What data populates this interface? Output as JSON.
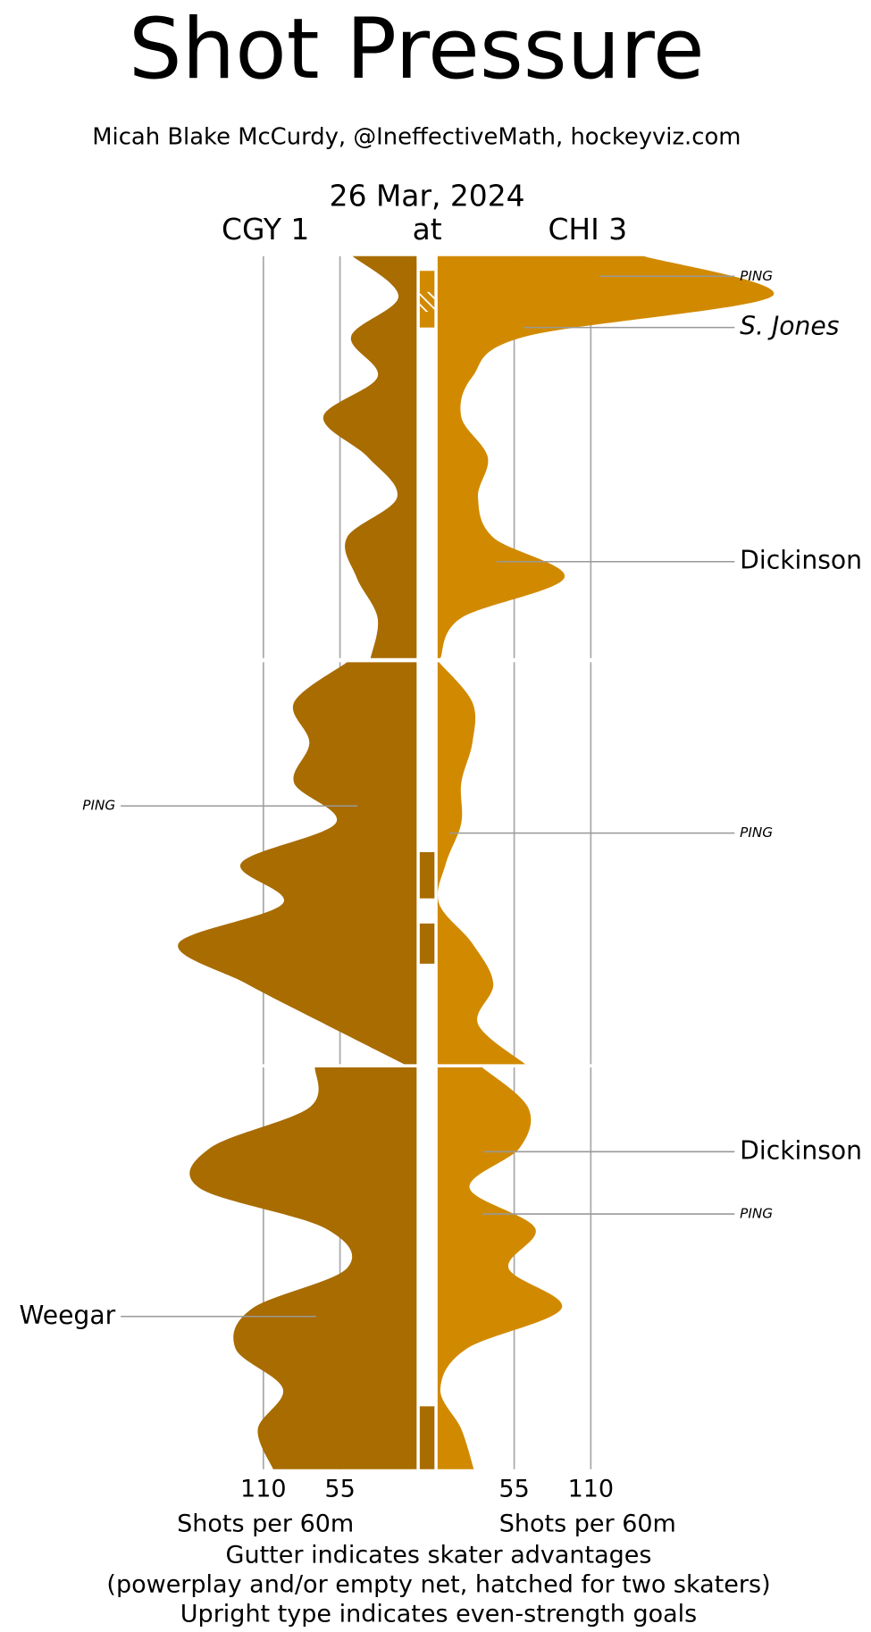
{
  "chart_data": {
    "type": "shot-pressure",
    "title": "Shot Pressure",
    "subtitle": "Micah Blake McCurdy, @IneffectiveMath, hockeyviz.com",
    "date": "26 Mar, 2024",
    "at": "at",
    "xlabel": "Shots per 60m",
    "footnotes": [
      "Gutter indicates skater advantages",
      "(powerplay and/or empty net, hatched for two skaters)",
      "Upright type indicates even-strength goals"
    ],
    "xlim": [
      0,
      220
    ],
    "xticks": [
      55,
      110
    ],
    "ylim": [
      0,
      20
    ],
    "grid": true,
    "x": [
      0,
      2,
      4,
      6,
      8,
      10,
      12,
      14,
      16,
      18,
      20
    ],
    "series": [
      {
        "name": "CGY 1",
        "color": "#a86c00",
        "side": "left",
        "periods": [
          [
            46,
            13,
            47,
            28,
            67,
            35,
            14,
            50,
            43,
            28,
            33
          ],
          [
            50,
            88,
            77,
            88,
            58,
            126,
            96,
            171,
            122,
            66,
            9
          ],
          [
            73,
            77,
            148,
            156,
            66,
            50,
            118,
            130,
            96,
            114,
            103
          ]
        ]
      },
      {
        "name": "CHI 3",
        "color": "#d18a00",
        "side": "right",
        "periods": [
          [
            148,
            240,
            63,
            25,
            17,
            36,
            29,
            40,
            91,
            17,
            2
          ],
          [
            1,
            25,
            25,
            17,
            17,
            6,
            1,
            25,
            40,
            29,
            63
          ],
          [
            32,
            65,
            59,
            23,
            70,
            51,
            89,
            21,
            2,
            17,
            26
          ]
        ]
      }
    ],
    "advantages": [
      {
        "team": 1,
        "period": 1,
        "start": 0.73,
        "end": 3.55,
        "two_skaters": [
          1.78,
          2.77
        ]
      },
      {
        "team": 0,
        "period": 2,
        "start": 9.45,
        "end": 11.75
      },
      {
        "team": 0,
        "period": 2,
        "start": 13.0,
        "end": 15.0
      },
      {
        "team": 0,
        "period": 3,
        "start": 16.87,
        "end": 20
      }
    ],
    "goals": [
      {
        "scorer": "PING",
        "team": 1,
        "period": 1,
        "time": 1.0,
        "even_strength": false,
        "small": true
      },
      {
        "scorer": "S. Jones",
        "team": 1,
        "period": 1,
        "time": 3.55,
        "even_strength": false,
        "small": false
      },
      {
        "scorer": "Dickinson",
        "team": 1,
        "period": 1,
        "time": 15.2,
        "even_strength": true,
        "small": false
      },
      {
        "scorer": "PING",
        "team": 0,
        "period": 2,
        "time": 7.15,
        "even_strength": false,
        "small": true
      },
      {
        "scorer": "PING",
        "team": 1,
        "period": 2,
        "time": 8.5,
        "even_strength": false,
        "small": true
      },
      {
        "scorer": "Dickinson",
        "team": 1,
        "period": 3,
        "time": 4.2,
        "even_strength": true,
        "small": false
      },
      {
        "scorer": "PING",
        "team": 1,
        "period": 3,
        "time": 7.3,
        "even_strength": false,
        "small": true
      },
      {
        "scorer": "Weegar",
        "team": 0,
        "period": 3,
        "time": 12.4,
        "even_strength": true,
        "small": false
      }
    ]
  }
}
